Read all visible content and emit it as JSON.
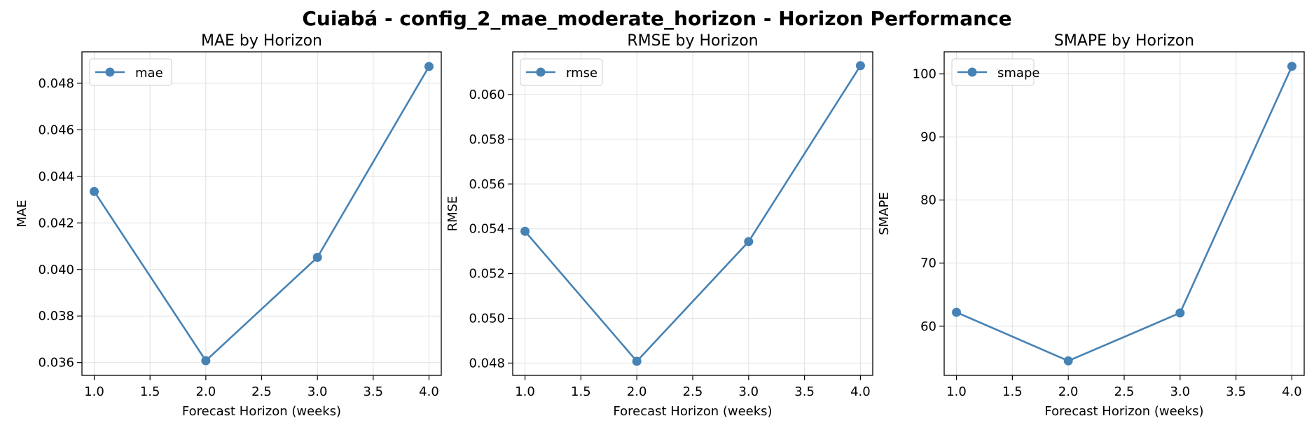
{
  "suptitle": "Cuiabá - config_2_mae_moderate_horizon - Horizon Performance",
  "colors": {
    "series": "#4682b4",
    "grid": "#e0e0e0",
    "axis": "#000000"
  },
  "chart_data": [
    {
      "type": "line",
      "title": "MAE by Horizon",
      "xlabel": "Forecast Horizon (weeks)",
      "ylabel": "MAE",
      "x": [
        1.0,
        2.0,
        3.0,
        4.0
      ],
      "series": [
        {
          "name": "mae",
          "values": [
            0.04335,
            0.03608,
            0.04052,
            0.04872
          ]
        }
      ],
      "xlim": [
        0.89,
        4.11
      ],
      "ylim": [
        0.03545,
        0.04935
      ],
      "xticks": [
        "1.0",
        "1.5",
        "2.0",
        "2.5",
        "3.0",
        "3.5",
        "4.0"
      ],
      "yticks": [
        "0.036",
        "0.038",
        "0.040",
        "0.042",
        "0.044",
        "0.046",
        "0.048"
      ],
      "grid": true,
      "legend": "upper-left",
      "marker": "circle"
    },
    {
      "type": "line",
      "title": "RMSE by Horizon",
      "xlabel": "Forecast Horizon (weeks)",
      "ylabel": "RMSE",
      "x": [
        1.0,
        2.0,
        3.0,
        4.0
      ],
      "series": [
        {
          "name": "rmse",
          "values": [
            0.05389,
            0.04808,
            0.05343,
            0.06129
          ]
        }
      ],
      "xlim": [
        0.89,
        4.11
      ],
      "ylim": [
        0.04745,
        0.06191
      ],
      "xticks": [
        "1.0",
        "1.5",
        "2.0",
        "2.5",
        "3.0",
        "3.5",
        "4.0"
      ],
      "yticks": [
        "0.048",
        "0.050",
        "0.052",
        "0.054",
        "0.056",
        "0.058",
        "0.060"
      ],
      "grid": true,
      "legend": "upper-left",
      "marker": "circle"
    },
    {
      "type": "line",
      "title": "SMAPE by Horizon",
      "xlabel": "Forecast Horizon (weeks)",
      "ylabel": "SMAPE",
      "x": [
        1.0,
        2.0,
        3.0,
        4.0
      ],
      "series": [
        {
          "name": "smape",
          "values": [
            62.2,
            54.5,
            62.1,
            101.2
          ]
        }
      ],
      "xlim": [
        0.89,
        4.11
      ],
      "ylim": [
        52.2,
        103.5
      ],
      "xticks": [
        "1.0",
        "1.5",
        "2.0",
        "2.5",
        "3.0",
        "3.5",
        "4.0"
      ],
      "yticks": [
        "60",
        "70",
        "80",
        "90",
        "100"
      ],
      "grid": true,
      "legend": "upper-left",
      "marker": "circle"
    }
  ]
}
